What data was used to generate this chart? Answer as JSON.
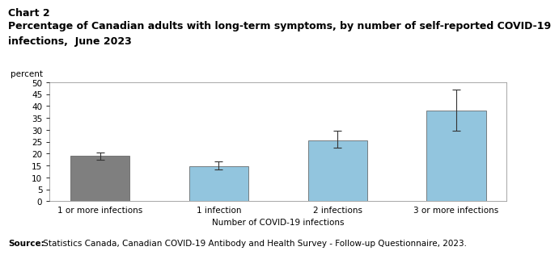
{
  "title_line1": "Chart 2",
  "title_line2": "Percentage of Canadian adults with long-term symptoms, by number of self-reported COVID-19",
  "title_line3": "infections,  June 2023",
  "ylabel": "percent",
  "xlabel": "Number of COVID-19 infections",
  "categories": [
    "1 or more infections",
    "1 infection",
    "2 infections",
    "3 or more infections"
  ],
  "values": [
    19.0,
    14.8,
    25.5,
    38.0
  ],
  "errors_low": [
    1.5,
    1.5,
    3.0,
    8.5
  ],
  "errors_high": [
    1.5,
    1.8,
    4.0,
    9.0
  ],
  "bar_colors": [
    "#7f7f7f",
    "#92C5DE",
    "#92C5DE",
    "#92C5DE"
  ],
  "ylim": [
    0,
    50
  ],
  "yticks": [
    0,
    5,
    10,
    15,
    20,
    25,
    30,
    35,
    40,
    45,
    50
  ],
  "source_bold": "Source:",
  "source_rest": " Statistics Canada, Canadian COVID-19 Antibody and Health Survey - Follow-up Questionnaire, 2023.",
  "background_color": "#ffffff",
  "plot_background": "#ffffff",
  "bar_edge_color": "#555555",
  "error_color": "#333333",
  "title1_fontsize": 9,
  "title2_fontsize": 9,
  "axis_fontsize": 7.5,
  "source_fontsize": 7.5,
  "ylabel_fontsize": 7.5
}
